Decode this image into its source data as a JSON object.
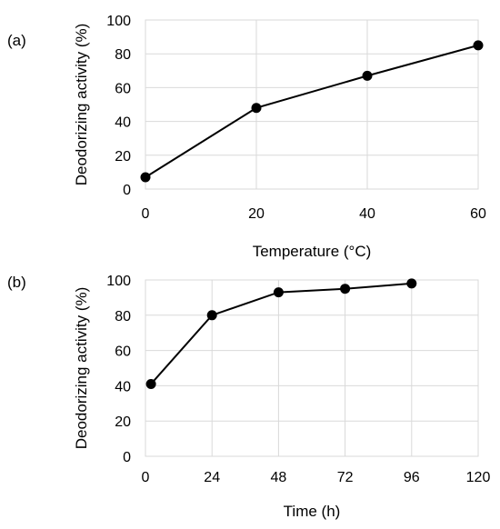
{
  "chart_data": [
    {
      "id": "a",
      "panel_label": "(a)",
      "type": "line",
      "xlabel": "Temperature (°C)",
      "ylabel": "Deodorizing activity (%)",
      "xlim": [
        0,
        60
      ],
      "ylim": [
        0,
        100
      ],
      "xticks": [
        0,
        20,
        40,
        60
      ],
      "yticks": [
        0,
        20,
        40,
        60,
        80,
        100
      ],
      "grid": true,
      "marker_color": "#000000",
      "series": [
        {
          "x": [
            0,
            20,
            40,
            60
          ],
          "y": [
            7,
            48,
            67,
            85
          ]
        }
      ]
    },
    {
      "id": "b",
      "panel_label": "(b)",
      "type": "line",
      "xlabel": "Time (h)",
      "ylabel": "Deodorizing activity (%)",
      "xlim": [
        0,
        120
      ],
      "ylim": [
        0,
        100
      ],
      "xticks": [
        0,
        24,
        48,
        72,
        96,
        120
      ],
      "yticks": [
        0,
        20,
        40,
        60,
        80,
        100
      ],
      "grid": true,
      "marker_color": "#000000",
      "series": [
        {
          "x": [
            2,
            24,
            48,
            72,
            96
          ],
          "y": [
            41,
            80,
            93,
            95,
            98
          ]
        }
      ]
    }
  ]
}
